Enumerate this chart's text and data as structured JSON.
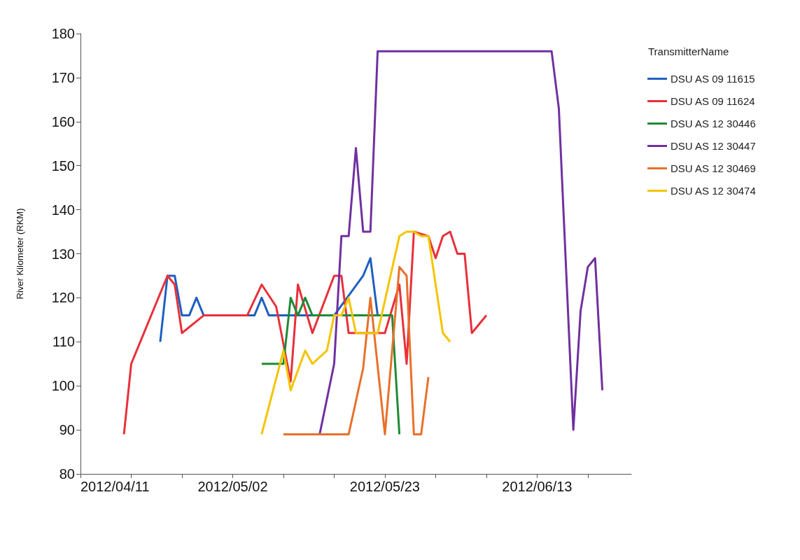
{
  "chart_data": {
    "type": "line",
    "ylabel": "River Kilometer (RKM)",
    "legend_title": "TransmitterName",
    "legend": "top right",
    "grid": false,
    "xlim": [
      "2012-04-11",
      "2012-06-26"
    ],
    "xticks": [
      {
        "value": "2012-04-11",
        "label": "2012/04/11"
      },
      {
        "value": "2012-04-18",
        "label": null
      },
      {
        "value": "2012-04-25",
        "label": null
      },
      {
        "value": "2012-05-02",
        "label": "2012/05/02"
      },
      {
        "value": "2012-05-09",
        "label": null
      },
      {
        "value": "2012-05-16",
        "label": null
      },
      {
        "value": "2012-05-23",
        "label": "2012/05/23"
      },
      {
        "value": "2012-05-30",
        "label": null
      },
      {
        "value": "2012-06-06",
        "label": null
      },
      {
        "value": "2012-06-13",
        "label": "2012/06/13"
      },
      {
        "value": "2012-06-20",
        "label": null
      }
    ],
    "ylim": [
      80,
      180
    ],
    "yticks": [
      80,
      90,
      100,
      110,
      120,
      130,
      140,
      150,
      160,
      170,
      180
    ],
    "series": [
      {
        "name": "DSU AS 09 11615",
        "color": "#1f5fc0",
        "x": [
          "2012-04-22",
          "2012-04-23",
          "2012-04-24",
          "2012-04-25",
          "2012-04-26",
          "2012-04-27",
          "2012-04-28",
          "2012-05-05",
          "2012-05-06",
          "2012-05-07",
          "2012-05-16",
          "2012-05-20",
          "2012-05-21",
          "2012-05-22"
        ],
        "values": [
          110,
          125,
          125,
          116,
          116,
          120,
          116,
          116,
          120,
          116,
          116,
          125,
          129,
          116
        ]
      },
      {
        "name": "DSU AS 09 11624",
        "color": "#e8303a",
        "x": [
          "2012-04-17",
          "2012-04-18",
          "2012-04-23",
          "2012-04-24",
          "2012-04-25",
          "2012-04-28",
          "2012-05-04",
          "2012-05-06",
          "2012-05-08",
          "2012-05-10",
          "2012-05-11",
          "2012-05-13",
          "2012-05-16",
          "2012-05-17",
          "2012-05-18",
          "2012-05-23",
          "2012-05-25",
          "2012-05-26",
          "2012-05-27",
          "2012-05-29",
          "2012-05-30",
          "2012-05-31",
          "2012-06-01",
          "2012-06-02",
          "2012-06-03",
          "2012-06-04",
          "2012-06-06"
        ],
        "values": [
          89,
          105,
          125,
          123,
          112,
          116,
          116,
          123,
          118,
          101,
          123,
          112,
          125,
          125,
          112,
          112,
          123,
          105,
          135,
          134,
          129,
          134,
          135,
          130,
          130,
          112,
          116
        ]
      },
      {
        "name": "DSU AS 12 30446",
        "color": "#1e8a35",
        "x": [
          "2012-05-06",
          "2012-05-09",
          "2012-05-10",
          "2012-05-11",
          "2012-05-12",
          "2012-05-13",
          "2012-05-24",
          "2012-05-25"
        ],
        "values": [
          105,
          105,
          120,
          116,
          120,
          116,
          116,
          89
        ]
      },
      {
        "name": "DSU AS 12 30447",
        "color": "#7030a0",
        "x": [
          "2012-05-14",
          "2012-05-16",
          "2012-05-17",
          "2012-05-18",
          "2012-05-19",
          "2012-05-20",
          "2012-05-21",
          "2012-05-22",
          "2012-06-15",
          "2012-06-16",
          "2012-06-18",
          "2012-06-19",
          "2012-06-20",
          "2012-06-21",
          "2012-06-22"
        ],
        "values": [
          89,
          105,
          134,
          134,
          154,
          135,
          135,
          176,
          176,
          163,
          90,
          117,
          127,
          129,
          99
        ]
      },
      {
        "name": "DSU AS 12 30469",
        "color": "#e8702a",
        "x": [
          "2012-05-09",
          "2012-05-18",
          "2012-05-20",
          "2012-05-21",
          "2012-05-23",
          "2012-05-25",
          "2012-05-26",
          "2012-05-27",
          "2012-05-28",
          "2012-05-29"
        ],
        "values": [
          89,
          89,
          104,
          120,
          89,
          127,
          125,
          89,
          89,
          102
        ]
      },
      {
        "name": "DSU AS 12 30474",
        "color": "#f5c400",
        "x": [
          "2012-05-06",
          "2012-05-09",
          "2012-05-10",
          "2012-05-12",
          "2012-05-13",
          "2012-05-15",
          "2012-05-16",
          "2012-05-17",
          "2012-05-18",
          "2012-05-19",
          "2012-05-22",
          "2012-05-25",
          "2012-05-26",
          "2012-05-27",
          "2012-05-28",
          "2012-05-29",
          "2012-05-31",
          "2012-06-01"
        ],
        "values": [
          89,
          108,
          99,
          108,
          105,
          108,
          116,
          116,
          120,
          112,
          112,
          134,
          135,
          135,
          134,
          134,
          112,
          110
        ]
      }
    ]
  }
}
